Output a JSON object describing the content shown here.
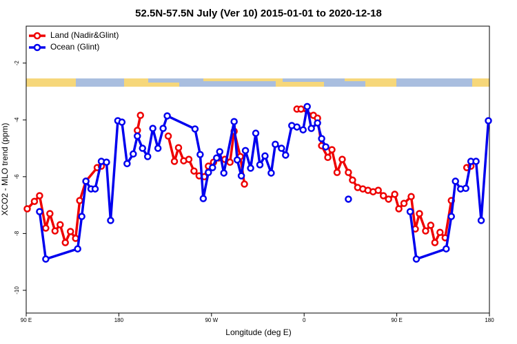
{
  "chart_data": {
    "type": "line",
    "title": "52.5N-57.5N July (Ver 10)   2015-01-01 to 2020-12-18",
    "x_label": "Longitude (deg E)",
    "y_label": "XCO2 - MLO trend (ppm)",
    "xlim": [
      90,
      540
    ],
    "ylim": [
      -10.8,
      -0.7
    ],
    "xticks": [
      {
        "value": 90,
        "label": "90 E"
      },
      {
        "value": 180,
        "label": "180"
      },
      {
        "value": 270,
        "label": "90 W"
      },
      {
        "value": 360,
        "label": "0"
      },
      {
        "value": 450,
        "label": "90 E"
      },
      {
        "value": 540,
        "label": "180"
      }
    ],
    "yticks": [
      -2,
      -4,
      -6,
      -8,
      -10
    ],
    "legend": "topleft",
    "series": [
      {
        "name": "Land (Nadir&Glint)",
        "color": "#ee0000",
        "x": [
          91,
          98,
          103,
          109,
          113,
          118,
          123,
          128,
          133,
          138,
          142,
          148,
          159,
          163,
          null,
          198,
          201,
          null,
          228,
          234,
          238,
          243,
          248,
          253,
          258,
          263,
          267,
          272,
          277,
          283,
          288,
          292,
          298,
          302,
          null,
          353,
          357,
          369,
          373,
          377,
          383,
          387,
          392,
          397,
          403,
          407,
          412,
          417,
          422,
          427,
          432,
          437,
          442,
          448,
          452,
          457,
          464,
          468,
          472,
          478,
          483,
          487,
          492,
          497,
          503,
          null,
          518,
          522
        ],
        "values": [
          -7.13,
          -6.87,
          -6.67,
          -7.81,
          -7.3,
          -7.91,
          -7.69,
          -8.32,
          -7.93,
          -8.17,
          -6.84,
          -6.16,
          -5.68,
          -5.63,
          null,
          -4.37,
          -3.84,
          null,
          -4.57,
          -5.46,
          -4.98,
          -5.44,
          -5.39,
          -5.8,
          -5.97,
          -6.0,
          -5.63,
          -5.49,
          -5.34,
          -5.39,
          -5.49,
          -4.4,
          -5.29,
          -6.26,
          null,
          -3.62,
          -3.62,
          -3.84,
          -3.94,
          -4.91,
          -5.32,
          -5.05,
          -5.85,
          -5.39,
          -5.85,
          -6.12,
          -6.38,
          -6.43,
          -6.48,
          -6.53,
          -6.48,
          -6.67,
          -6.79,
          -6.62,
          -7.13,
          -6.94,
          -6.7,
          -7.84,
          -7.3,
          -7.91,
          -7.71,
          -8.32,
          -7.96,
          -8.15,
          -6.84,
          null,
          -5.68,
          -5.63
        ]
      },
      {
        "name": "Ocean (Glint)",
        "color": "#0000ee",
        "x": [
          103,
          109,
          140,
          144,
          148,
          153,
          157,
          163,
          168,
          172,
          179,
          183,
          188,
          194,
          198,
          203,
          208,
          213,
          218,
          223,
          227,
          254,
          259,
          262,
          267,
          271,
          275,
          278,
          282,
          292,
          295,
          299,
          303,
          308,
          313,
          317,
          322,
          328,
          332,
          338,
          342,
          348,
          353,
          359,
          363,
          367,
          373,
          377,
          381,
          null,
          403,
          null,
          463,
          469,
          498,
          503,
          507,
          512,
          517,
          522,
          527,
          532,
          539
        ],
        "values": [
          -7.23,
          -8.9,
          -8.54,
          -7.4,
          -6.16,
          -6.43,
          -6.43,
          -5.46,
          -5.49,
          -7.54,
          -4.03,
          -4.08,
          -5.54,
          -5.2,
          -4.57,
          -5.0,
          -5.29,
          -4.3,
          -5.0,
          -4.3,
          -3.86,
          -4.32,
          -5.22,
          -6.77,
          -5.85,
          -5.68,
          -5.34,
          -5.12,
          -5.87,
          -4.06,
          -5.41,
          -5.97,
          -5.08,
          -5.7,
          -4.47,
          -5.58,
          -5.27,
          -5.87,
          -4.86,
          -5.0,
          -5.24,
          -4.2,
          -4.25,
          -4.35,
          -3.53,
          -4.3,
          -4.11,
          -4.66,
          -4.95,
          null,
          -6.79,
          null,
          -7.23,
          -8.9,
          -8.54,
          -7.4,
          -6.16,
          -6.43,
          -6.41,
          -5.46,
          -5.46,
          -7.54,
          -4.03
        ]
      }
    ]
  }
}
